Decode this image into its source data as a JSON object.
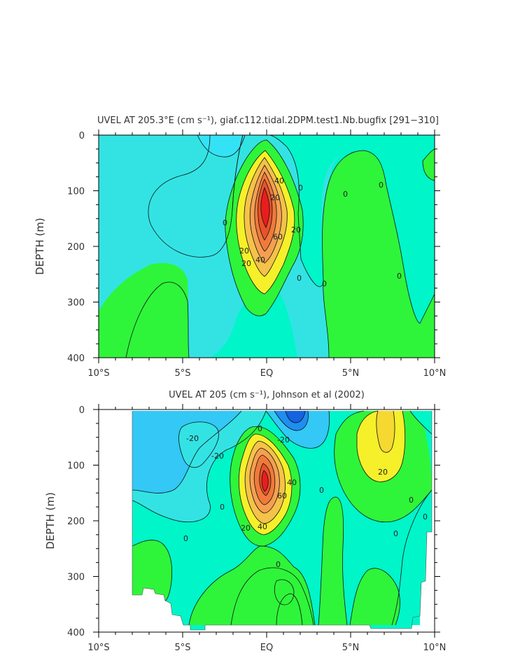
{
  "chart_data": [
    {
      "type": "contour",
      "title": "UVEL AT 205.3°E (cm s⁻¹), giaf.c112.tidal.2DPM.test1.Nb.bugfix [291−310]",
      "xlabel": "",
      "ylabel": "DEPTH (m)",
      "x_ticks": [
        "10°S",
        "5°S",
        "EQ",
        "5°N",
        "10°N"
      ],
      "y_ticks": [
        "0",
        "100",
        "200",
        "300",
        "400"
      ],
      "xlim": [
        -10,
        10
      ],
      "ylim": [
        400,
        0
      ],
      "contour_labels": [
        "40",
        "20",
        "20",
        "60",
        "20",
        "40",
        "20",
        "0",
        "0",
        "0",
        "0",
        "0",
        "0",
        "0"
      ],
      "colors": {
        "low": "#33e3e3",
        "zero": "#00f5c9",
        "pos20": "#2ef53a",
        "pos40": "#f5f02a",
        "pos60": "#f5a050",
        "peak": "#e81e1e"
      }
    },
    {
      "type": "contour",
      "title": "UVEL AT 205 (cm s⁻¹), Johnson et al (2002)",
      "xlabel": "",
      "ylabel": "DEPTH (m)",
      "x_ticks": [
        "10°S",
        "5°S",
        "EQ",
        "5°N",
        "10°N"
      ],
      "y_ticks": [
        "0",
        "100",
        "200",
        "300",
        "400"
      ],
      "xlim": [
        -10,
        10
      ],
      "ylim": [
        400,
        0
      ],
      "contour_labels": [
        "-20",
        "-20",
        "0",
        "0",
        "-20",
        "40",
        "60",
        "40",
        "20",
        "20",
        "0",
        "0",
        "0",
        "0",
        "0",
        "0"
      ],
      "colors": {
        "neg40": "#1463e0",
        "neg20": "#33c8f5",
        "neg10": "#33e3e3",
        "zero": "#00f5c9",
        "pos20": "#2ef53a",
        "pos40": "#f5f02a",
        "pos60": "#f5a050",
        "peak": "#e81e1e"
      }
    }
  ]
}
